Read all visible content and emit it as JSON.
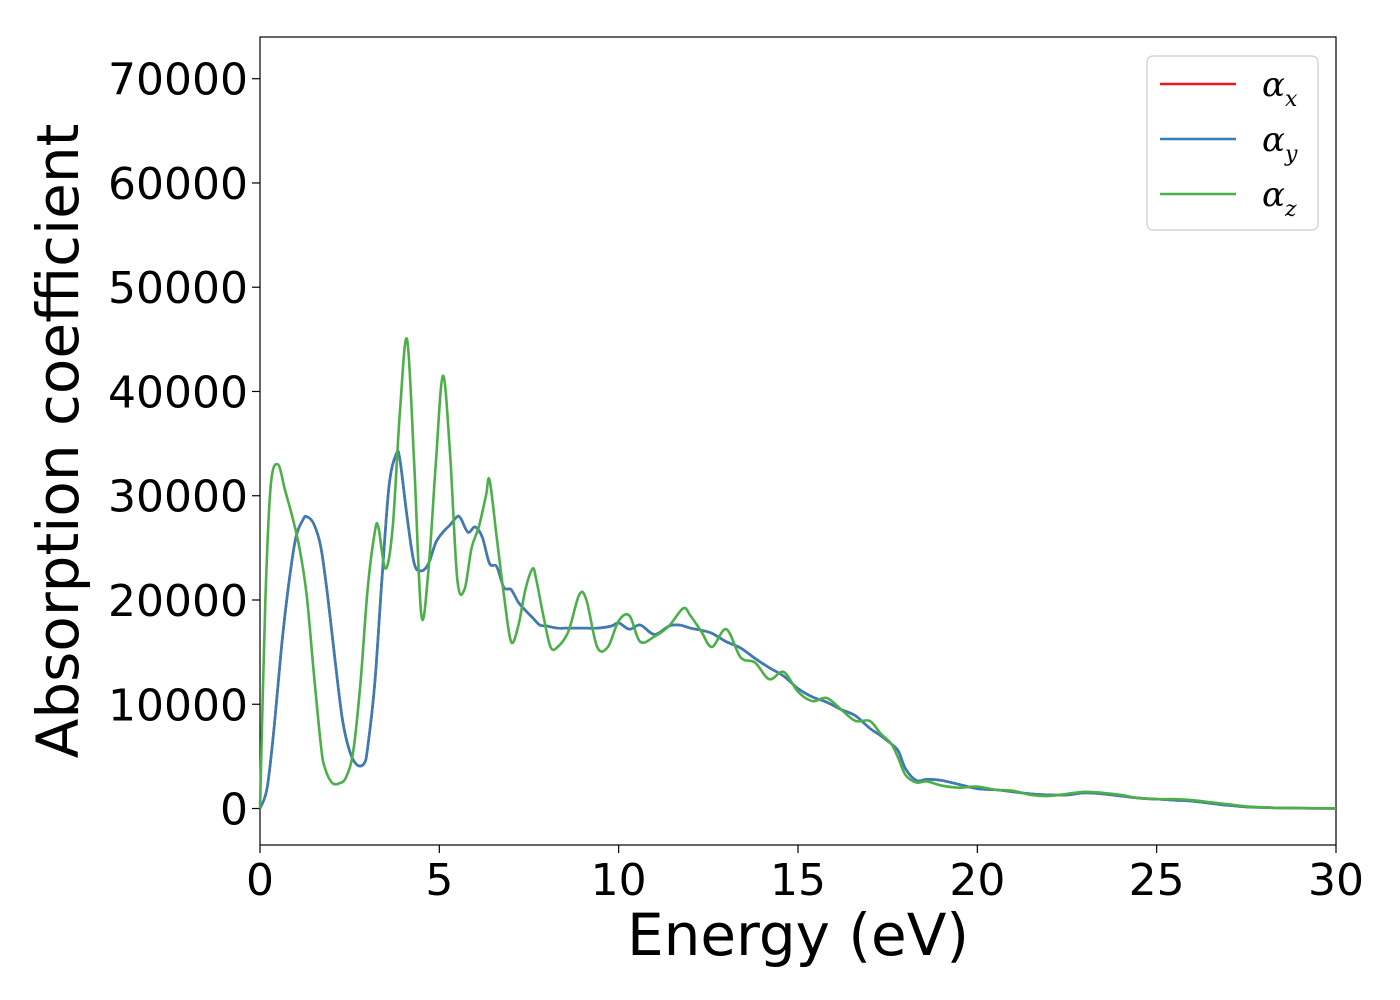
{
  "chart_data": {
    "type": "line",
    "title": "",
    "xlabel": "Energy (eV)",
    "ylabel": "Absorption coefficient",
    "xlim": [
      0,
      30
    ],
    "ylim": [
      -3500,
      74000
    ],
    "xticks": [
      0,
      5,
      10,
      15,
      20,
      25,
      30
    ],
    "yticks": [
      0,
      10000,
      20000,
      30000,
      40000,
      50000,
      60000,
      70000
    ],
    "xtick_labels": [
      "0",
      "5",
      "10",
      "15",
      "20",
      "25",
      "30"
    ],
    "ytick_labels": [
      "0",
      "10000",
      "20000",
      "30000",
      "40000",
      "50000",
      "60000",
      "70000"
    ],
    "grid": false,
    "legend_position": "top-right",
    "series": [
      {
        "name": "α",
        "subscript": "x",
        "color": "#e41a1c",
        "x": [
          0,
          0.2,
          0.4,
          0.6,
          0.8,
          1.0,
          1.2,
          1.3,
          1.5,
          1.7,
          1.9,
          2.1,
          2.3,
          2.5,
          2.7,
          2.9,
          3.0,
          3.2,
          3.4,
          3.6,
          3.8,
          3.9,
          4.1,
          4.3,
          4.5,
          4.7,
          4.9,
          5.1,
          5.3,
          5.5,
          5.6,
          5.8,
          6.0,
          6.2,
          6.4,
          6.6,
          6.8,
          7.0,
          7.2,
          7.4,
          7.6,
          7.8,
          8.0,
          8.3,
          8.6,
          9.0,
          9.4,
          9.8,
          10.0,
          10.3,
          10.6,
          11.0,
          11.4,
          11.7,
          12.0,
          12.3,
          12.6,
          13.0,
          13.4,
          13.8,
          14.2,
          14.6,
          15.0,
          15.4,
          15.8,
          16.2,
          16.6,
          17.0,
          17.3,
          17.6,
          17.8,
          18.0,
          18.3,
          18.6,
          19.0,
          19.5,
          20.0,
          20.5,
          21.0,
          21.5,
          22.0,
          22.5,
          23.0,
          23.5,
          24.0,
          24.5,
          25.0,
          25.5,
          26.0,
          26.5,
          27.0,
          27.5,
          28.0,
          28.5,
          29.0,
          29.5,
          30.0
        ],
        "y": [
          0,
          2000,
          8000,
          15500,
          21500,
          26000,
          27700,
          28000,
          27300,
          25000,
          20000,
          14000,
          8500,
          5500,
          4200,
          4300,
          5800,
          12000,
          22000,
          31000,
          34000,
          33500,
          28000,
          23500,
          22800,
          23500,
          25500,
          26500,
          27200,
          28000,
          27800,
          26500,
          27000,
          26000,
          23500,
          23200,
          21200,
          21000,
          19800,
          19000,
          18300,
          17600,
          17500,
          17300,
          17300,
          17300,
          17300,
          17500,
          17800,
          17200,
          17600,
          16700,
          17500,
          17600,
          17300,
          17100,
          16800,
          16000,
          15400,
          14400,
          13500,
          12700,
          11500,
          10700,
          10200,
          9500,
          8900,
          7700,
          7000,
          6200,
          5500,
          3800,
          2700,
          2800,
          2700,
          2300,
          1900,
          1800,
          1600,
          1400,
          1300,
          1300,
          1500,
          1400,
          1200,
          1000,
          900,
          800,
          700,
          500,
          300,
          150,
          100,
          50,
          30,
          20,
          10
        ]
      },
      {
        "name": "α",
        "subscript": "y",
        "color": "#377eb8",
        "x": [
          0,
          0.2,
          0.4,
          0.6,
          0.8,
          1.0,
          1.2,
          1.3,
          1.5,
          1.7,
          1.9,
          2.1,
          2.3,
          2.5,
          2.7,
          2.9,
          3.0,
          3.2,
          3.4,
          3.6,
          3.8,
          3.9,
          4.1,
          4.3,
          4.5,
          4.7,
          4.9,
          5.1,
          5.3,
          5.5,
          5.6,
          5.8,
          6.0,
          6.2,
          6.4,
          6.6,
          6.8,
          7.0,
          7.2,
          7.4,
          7.6,
          7.8,
          8.0,
          8.3,
          8.6,
          9.0,
          9.4,
          9.8,
          10.0,
          10.3,
          10.6,
          11.0,
          11.4,
          11.7,
          12.0,
          12.3,
          12.6,
          13.0,
          13.4,
          13.8,
          14.2,
          14.6,
          15.0,
          15.4,
          15.8,
          16.2,
          16.6,
          17.0,
          17.3,
          17.6,
          17.8,
          18.0,
          18.3,
          18.6,
          19.0,
          19.5,
          20.0,
          20.5,
          21.0,
          21.5,
          22.0,
          22.5,
          23.0,
          23.5,
          24.0,
          24.5,
          25.0,
          25.5,
          26.0,
          26.5,
          27.0,
          27.5,
          28.0,
          28.5,
          29.0,
          29.5,
          30.0
        ],
        "y": [
          0,
          2000,
          8000,
          15500,
          21500,
          26000,
          27700,
          28000,
          27300,
          25000,
          20000,
          14000,
          8500,
          5500,
          4200,
          4300,
          5800,
          12000,
          22000,
          31000,
          34000,
          33500,
          28000,
          23500,
          22800,
          23500,
          25500,
          26500,
          27200,
          28000,
          27800,
          26500,
          27000,
          26000,
          23500,
          23200,
          21200,
          21000,
          19800,
          19000,
          18300,
          17600,
          17500,
          17300,
          17300,
          17300,
          17300,
          17500,
          17800,
          17200,
          17600,
          16700,
          17500,
          17600,
          17300,
          17100,
          16800,
          16000,
          15400,
          14400,
          13500,
          12700,
          11500,
          10700,
          10200,
          9500,
          8900,
          7700,
          7000,
          6200,
          5500,
          3800,
          2700,
          2800,
          2700,
          2300,
          1900,
          1800,
          1600,
          1400,
          1300,
          1300,
          1500,
          1400,
          1200,
          1000,
          900,
          800,
          700,
          500,
          300,
          150,
          100,
          50,
          30,
          20,
          10
        ]
      },
      {
        "name": "α",
        "subscript": "z",
        "color": "#4daf4a",
        "x": [
          0,
          0.15,
          0.3,
          0.5,
          0.7,
          0.9,
          1.1,
          1.3,
          1.5,
          1.7,
          1.8,
          2.0,
          2.2,
          2.4,
          2.6,
          2.8,
          3.0,
          3.2,
          3.3,
          3.5,
          3.7,
          3.9,
          4.1,
          4.3,
          4.5,
          4.7,
          4.9,
          5.1,
          5.3,
          5.5,
          5.7,
          5.9,
          6.1,
          6.3,
          6.4,
          6.6,
          6.8,
          7.0,
          7.2,
          7.4,
          7.6,
          7.7,
          7.9,
          8.1,
          8.3,
          8.6,
          8.9,
          9.1,
          9.4,
          9.7,
          10.0,
          10.3,
          10.6,
          11.0,
          11.4,
          11.8,
          12.0,
          12.3,
          12.6,
          13.0,
          13.4,
          13.8,
          14.2,
          14.6,
          15.0,
          15.4,
          15.8,
          16.2,
          16.6,
          17.0,
          17.3,
          17.6,
          17.8,
          18.0,
          18.3,
          18.6,
          19.0,
          19.5,
          20.0,
          20.5,
          21.0,
          21.5,
          22.0,
          22.5,
          23.0,
          23.5,
          24.0,
          24.5,
          25.0,
          25.5,
          26.0,
          26.5,
          27.0,
          27.5,
          28.0,
          28.5,
          29.0,
          29.5,
          30.0
        ],
        "y": [
          0,
          20000,
          31000,
          33000,
          30500,
          28000,
          25000,
          20500,
          13000,
          6000,
          4000,
          2500,
          2400,
          3000,
          5500,
          12000,
          21000,
          26500,
          27000,
          23000,
          27000,
          38000,
          45000,
          33000,
          18500,
          23000,
          33000,
          41500,
          34000,
          22000,
          21000,
          25000,
          27000,
          30000,
          31500,
          26000,
          20500,
          16000,
          17500,
          21000,
          23000,
          22000,
          18500,
          15500,
          15500,
          17000,
          20500,
          20000,
          15500,
          15500,
          18000,
          18500,
          16000,
          16500,
          17500,
          19200,
          18500,
          17000,
          15500,
          17200,
          14500,
          14000,
          12400,
          13100,
          11200,
          10300,
          10600,
          9500,
          8400,
          8400,
          7200,
          6200,
          4800,
          3200,
          2500,
          2600,
          2200,
          2000,
          2100,
          1800,
          1700,
          1300,
          1200,
          1400,
          1600,
          1500,
          1300,
          1000,
          900,
          900,
          800,
          600,
          400,
          200,
          100,
          60,
          40,
          20,
          10
        ]
      }
    ]
  }
}
